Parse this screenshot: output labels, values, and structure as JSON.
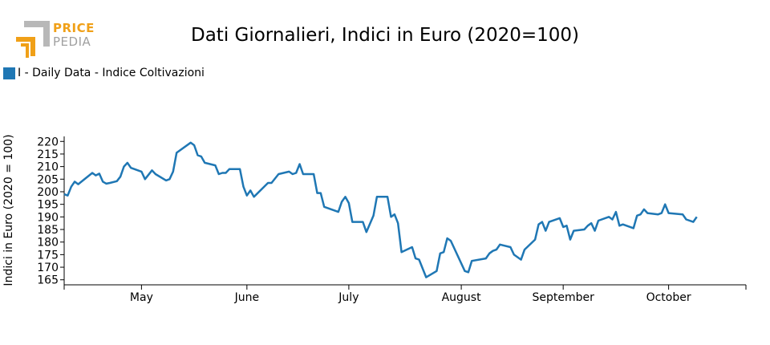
{
  "brand": {
    "line1": "PRICE",
    "line2": "PEDIA",
    "accent_color": "#f0a018",
    "muted_color": "#a0a0a0"
  },
  "chart_data": {
    "type": "line",
    "title": "Dati Giornalieri, Indici in Euro (2020=100)",
    "ylabel": "Indici in Euro (2020 = 100)",
    "xlabel": "",
    "ylim": [
      163,
      222
    ],
    "yticks": [
      165,
      170,
      175,
      180,
      185,
      190,
      195,
      200,
      205,
      210,
      215,
      220
    ],
    "x_range_days": [
      0,
      194
    ],
    "months": [
      {
        "label": "May",
        "day": 22
      },
      {
        "label": "June",
        "day": 52
      },
      {
        "label": "July",
        "day": 81
      },
      {
        "label": "August",
        "day": 113
      },
      {
        "label": "September",
        "day": 142
      },
      {
        "label": "October",
        "day": 172
      }
    ],
    "series": [
      {
        "name": "I - Daily Data - Indice Coltivazioni",
        "color": "#1f77b4",
        "points": [
          [
            0,
            199
          ],
          [
            1,
            198.5
          ],
          [
            2,
            202
          ],
          [
            3,
            204
          ],
          [
            4,
            203
          ],
          [
            8,
            207.5
          ],
          [
            9,
            206.5
          ],
          [
            10,
            207.2
          ],
          [
            11,
            204
          ],
          [
            12,
            203.2
          ],
          [
            13,
            203.5
          ],
          [
            15,
            204.2
          ],
          [
            16,
            206
          ],
          [
            17,
            210
          ],
          [
            18,
            211.5
          ],
          [
            19,
            209.5
          ],
          [
            22,
            208
          ],
          [
            23,
            205
          ],
          [
            25,
            208.5
          ],
          [
            26,
            207
          ],
          [
            29,
            204.5
          ],
          [
            30,
            205
          ],
          [
            31,
            208
          ],
          [
            32,
            215.5
          ],
          [
            36,
            219.5
          ],
          [
            37,
            218.5
          ],
          [
            38,
            214.5
          ],
          [
            39,
            214
          ],
          [
            40,
            211.5
          ],
          [
            43,
            210.5
          ],
          [
            44,
            207
          ],
          [
            45,
            207.5
          ],
          [
            46,
            207.5
          ],
          [
            47,
            209
          ],
          [
            50,
            209
          ],
          [
            51,
            202
          ],
          [
            52,
            198.5
          ],
          [
            53,
            200.5
          ],
          [
            54,
            198
          ],
          [
            58,
            203.5
          ],
          [
            59,
            203.5
          ],
          [
            61,
            207
          ],
          [
            64,
            208
          ],
          [
            65,
            207
          ],
          [
            66,
            207.5
          ],
          [
            67,
            211
          ],
          [
            68,
            207
          ],
          [
            71,
            207
          ],
          [
            72,
            199.5
          ],
          [
            73,
            199.5
          ],
          [
            74,
            194
          ],
          [
            78,
            192
          ],
          [
            79,
            196
          ],
          [
            80,
            198
          ],
          [
            81,
            195.5
          ],
          [
            82,
            188
          ],
          [
            85,
            188
          ],
          [
            86,
            184
          ],
          [
            88,
            190.5
          ],
          [
            89,
            198
          ],
          [
            92,
            198
          ],
          [
            93,
            190
          ],
          [
            94,
            191
          ],
          [
            95,
            187.5
          ],
          [
            96,
            176
          ],
          [
            99,
            178
          ],
          [
            100,
            173.5
          ],
          [
            101,
            173
          ],
          [
            103,
            166
          ],
          [
            106,
            168.5
          ],
          [
            107,
            175.5
          ],
          [
            108,
            176
          ],
          [
            109,
            181.5
          ],
          [
            110,
            180.5
          ],
          [
            114,
            168.5
          ],
          [
            115,
            168
          ],
          [
            116,
            172.5
          ],
          [
            120,
            173.5
          ],
          [
            121,
            175.5
          ],
          [
            122,
            176.5
          ],
          [
            123,
            177
          ],
          [
            124,
            179
          ],
          [
            127,
            178
          ],
          [
            128,
            175
          ],
          [
            130,
            173
          ],
          [
            131,
            177
          ],
          [
            134,
            181
          ],
          [
            135,
            187
          ],
          [
            136,
            188
          ],
          [
            137,
            184.5
          ],
          [
            138,
            188
          ],
          [
            141,
            189.5
          ],
          [
            142,
            186
          ],
          [
            143,
            186.5
          ],
          [
            144,
            181
          ],
          [
            145,
            184.5
          ],
          [
            148,
            185
          ],
          [
            149,
            186.5
          ],
          [
            150,
            187.5
          ],
          [
            151,
            184.5
          ],
          [
            152,
            188.5
          ],
          [
            155,
            190
          ],
          [
            156,
            189
          ],
          [
            157,
            192
          ],
          [
            158,
            186.5
          ],
          [
            159,
            187
          ],
          [
            162,
            185.5
          ],
          [
            163,
            190.5
          ],
          [
            164,
            191
          ],
          [
            165,
            193
          ],
          [
            166,
            191.5
          ],
          [
            169,
            191
          ],
          [
            170,
            191.5
          ],
          [
            171,
            195
          ],
          [
            172,
            191.5
          ],
          [
            176,
            191
          ],
          [
            177,
            189
          ],
          [
            179,
            188
          ],
          [
            180,
            190
          ]
        ]
      }
    ]
  }
}
